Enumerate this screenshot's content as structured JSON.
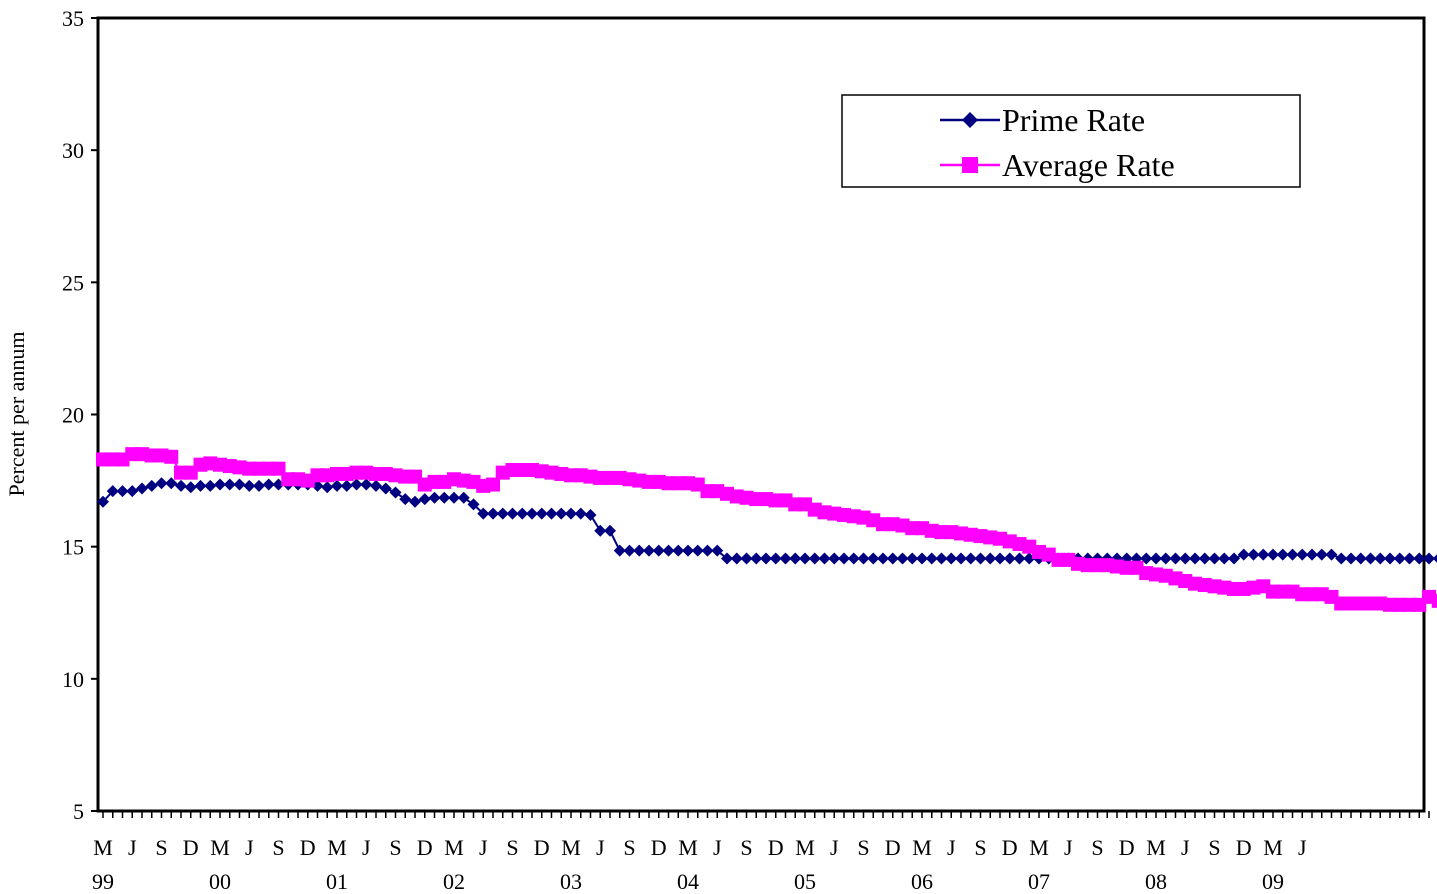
{
  "chart_data": {
    "type": "line",
    "ylabel": "Percent per annum",
    "xlabel": "",
    "ylim": [
      5,
      35
    ],
    "yticks": [
      5,
      10,
      15,
      20,
      25,
      30,
      35
    ],
    "grid": false,
    "legend_position": "top-right",
    "x_month_labels": [
      "M",
      "J",
      "S",
      "D",
      "M",
      "J",
      "S",
      "D",
      "M",
      "J",
      "S",
      "D",
      "M",
      "J",
      "S",
      "D",
      "M",
      "J",
      "S",
      "D",
      "M",
      "J",
      "S",
      "D",
      "M",
      "J",
      "S",
      "D",
      "M",
      "J",
      "S",
      "D",
      "M",
      "J",
      "S",
      "D",
      "M",
      "J",
      "S",
      "D",
      "M",
      "J"
    ],
    "x_year_labels": [
      "99",
      "00",
      "01",
      "02",
      "03",
      "04",
      "05",
      "06",
      "07",
      "08",
      "09"
    ],
    "x_start": "1999-03",
    "series": [
      {
        "name": "Prime Rate",
        "color": "#000080",
        "marker": "diamond",
        "values": [
          16.7,
          17.1,
          17.1,
          17.1,
          17.2,
          17.3,
          17.4,
          17.4,
          17.3,
          17.25,
          17.3,
          17.3,
          17.35,
          17.35,
          17.35,
          17.3,
          17.3,
          17.35,
          17.35,
          17.35,
          17.35,
          17.35,
          17.3,
          17.25,
          17.3,
          17.3,
          17.35,
          17.35,
          17.3,
          17.2,
          17.05,
          16.8,
          16.7,
          16.8,
          16.85,
          16.85,
          16.85,
          16.85,
          16.6,
          16.25,
          16.25,
          16.25,
          16.25,
          16.25,
          16.25,
          16.25,
          16.25,
          16.25,
          16.25,
          16.25,
          16.2,
          15.6,
          15.6,
          14.85,
          14.85,
          14.85,
          14.85,
          14.85,
          14.85,
          14.85,
          14.85,
          14.85,
          14.85,
          14.85,
          14.55,
          14.55,
          14.55,
          14.55,
          14.55,
          14.55,
          14.55,
          14.55,
          14.55,
          14.55,
          14.55,
          14.55,
          14.55,
          14.55,
          14.55,
          14.55,
          14.55,
          14.55,
          14.55,
          14.55,
          14.55,
          14.55,
          14.55,
          14.55,
          14.55,
          14.55,
          14.55,
          14.55,
          14.55,
          14.55,
          14.55,
          14.55,
          14.55,
          14.55,
          14.55,
          14.55,
          14.55,
          14.55,
          14.55,
          14.55,
          14.55,
          14.55,
          14.55,
          14.55,
          14.55,
          14.55,
          14.55,
          14.55,
          14.55,
          14.55,
          14.55,
          14.55,
          14.55,
          14.7,
          14.7,
          14.7,
          14.7,
          14.7,
          14.7,
          14.7,
          14.7,
          14.7,
          14.7,
          14.55,
          14.55,
          14.55,
          14.55,
          14.55,
          14.55,
          14.55,
          14.55,
          14.55,
          14.55,
          14.55,
          14.55,
          14.55,
          14.55,
          14.55,
          14.55,
          14.55,
          14.55,
          14.55,
          14.55,
          14.55,
          14.55,
          14.55,
          14.55,
          14.55,
          14.55,
          14.55
        ]
      },
      {
        "name": "Average Rate",
        "color": "#ff00ff",
        "marker": "square",
        "values": [
          18.3,
          18.3,
          18.3,
          18.5,
          18.5,
          18.45,
          18.45,
          18.4,
          17.8,
          17.8,
          18.1,
          18.15,
          18.1,
          18.05,
          18.0,
          17.95,
          17.95,
          17.95,
          17.95,
          17.55,
          17.55,
          17.5,
          17.7,
          17.7,
          17.75,
          17.75,
          17.8,
          17.8,
          17.75,
          17.75,
          17.7,
          17.65,
          17.65,
          17.35,
          17.45,
          17.45,
          17.55,
          17.5,
          17.45,
          17.3,
          17.35,
          17.8,
          17.9,
          17.9,
          17.9,
          17.85,
          17.8,
          17.75,
          17.7,
          17.7,
          17.65,
          17.6,
          17.6,
          17.6,
          17.55,
          17.5,
          17.45,
          17.45,
          17.4,
          17.4,
          17.4,
          17.35,
          17.1,
          17.1,
          17.0,
          16.9,
          16.85,
          16.8,
          16.8,
          16.75,
          16.75,
          16.6,
          16.6,
          16.4,
          16.3,
          16.25,
          16.2,
          16.15,
          16.1,
          16.0,
          15.85,
          15.85,
          15.8,
          15.7,
          15.7,
          15.6,
          15.55,
          15.55,
          15.5,
          15.45,
          15.4,
          15.35,
          15.3,
          15.2,
          15.1,
          15.0,
          14.8,
          14.7,
          14.5,
          14.5,
          14.35,
          14.3,
          14.3,
          14.3,
          14.25,
          14.2,
          14.2,
          14.0,
          13.95,
          13.9,
          13.8,
          13.7,
          13.6,
          13.55,
          13.5,
          13.45,
          13.4,
          13.4,
          13.45,
          13.5,
          13.3,
          13.3,
          13.3,
          13.2,
          13.2,
          13.2,
          13.1,
          12.85,
          12.85,
          12.85,
          12.85,
          12.85,
          12.8,
          12.8,
          12.8,
          12.8,
          13.1,
          12.95,
          12.9,
          12.9,
          12.85,
          12.8,
          12.75,
          12.75,
          12.75,
          12.75,
          12.7,
          12.7,
          12.6,
          12.45,
          12.45,
          12.45,
          12.45,
          12.4,
          12.4,
          12.35,
          12.35,
          12.35,
          12.3,
          12.3,
          12.1,
          12.1,
          12.15,
          12.2,
          12.2,
          12.15,
          12.1,
          12.3,
          12.1,
          12.15,
          12.4,
          12.35,
          12.3,
          12.35,
          12.3,
          12.3,
          12.2,
          11.8,
          11.8,
          11.7,
          11.7,
          11.9,
          11.95,
          12.0,
          11.95,
          12.0
        ]
      }
    ]
  }
}
